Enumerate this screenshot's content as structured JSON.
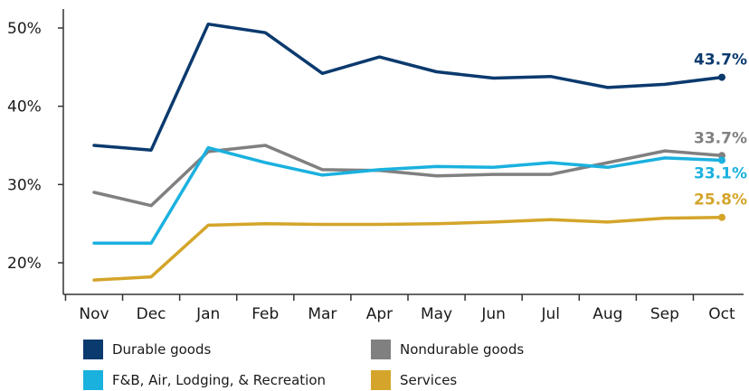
{
  "chart_data": {
    "type": "line",
    "categories": [
      "Nov",
      "Dec",
      "Jan",
      "Feb",
      "Mar",
      "Apr",
      "May",
      "Jun",
      "Jul",
      "Aug",
      "Sep",
      "Oct"
    ],
    "ylim": [
      17,
      52
    ],
    "yticks": [
      20,
      30,
      40,
      50
    ],
    "ytick_labels": [
      "20%",
      "30%",
      "40%",
      "50%"
    ],
    "grid": false,
    "legend_position": "bottom",
    "series": [
      {
        "name": "Durable goods",
        "color": "#0b3a6e",
        "values": [
          35.0,
          34.4,
          50.5,
          49.4,
          44.2,
          46.3,
          44.4,
          43.6,
          43.8,
          42.4,
          42.8,
          43.7
        ],
        "end_label": "43.7%"
      },
      {
        "name": "Nondurable goods",
        "color": "#808080",
        "values": [
          29.0,
          27.3,
          34.2,
          35.0,
          31.9,
          31.8,
          31.1,
          31.3,
          31.3,
          32.8,
          34.3,
          33.7
        ],
        "end_label": "33.7%"
      },
      {
        "name": "F&B, Air, Lodging, & Recreation",
        "color": "#1ab1df",
        "values": [
          22.5,
          22.5,
          34.7,
          32.8,
          31.2,
          31.9,
          32.3,
          32.2,
          32.8,
          32.2,
          33.4,
          33.1
        ],
        "end_label": "33.1%"
      },
      {
        "name": "Services",
        "color": "#d4a52a",
        "values": [
          17.8,
          18.2,
          24.8,
          25.0,
          24.9,
          24.9,
          25.0,
          25.2,
          25.5,
          25.2,
          25.7,
          25.8
        ],
        "end_label": "25.8%"
      }
    ]
  },
  "legend": {
    "items": [
      {
        "label": "Durable goods",
        "color": "#0b3a6e"
      },
      {
        "label": "Nondurable goods",
        "color": "#808080"
      },
      {
        "label": "F&B, Air, Lodging, & Recreation",
        "color": "#1ab1df"
      },
      {
        "label": "Services",
        "color": "#d4a52a"
      }
    ]
  }
}
